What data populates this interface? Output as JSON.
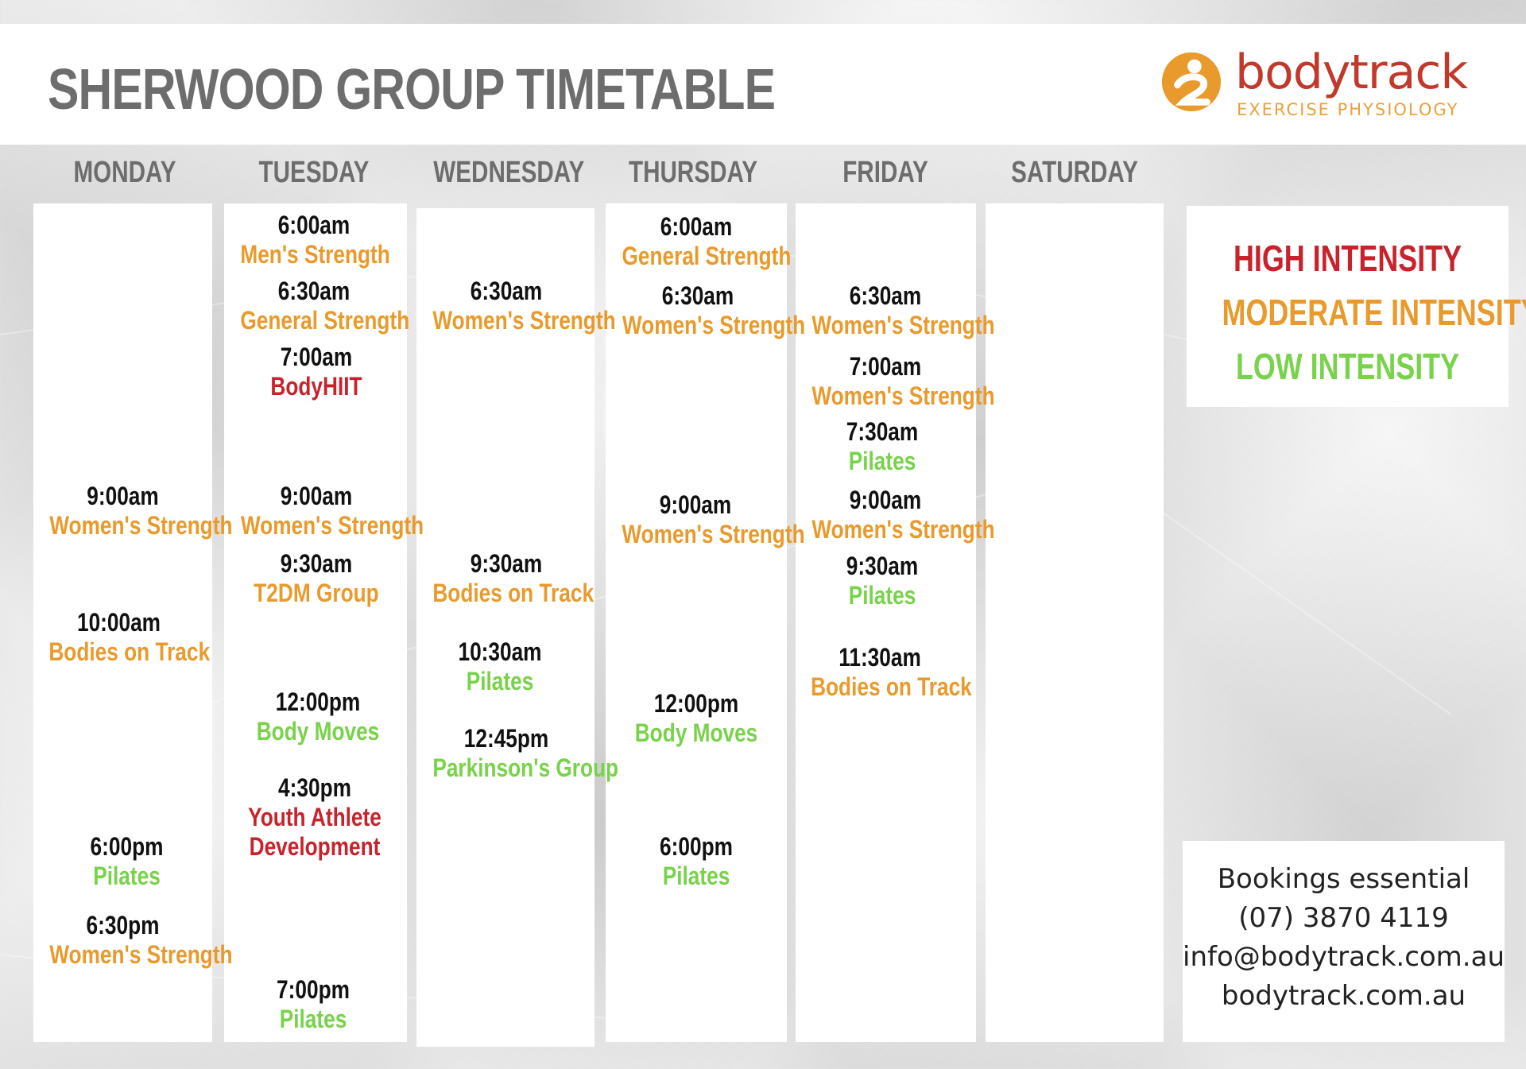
{
  "title": "SHERWOOD GROUP TIMETABLE",
  "brand": {
    "name": "bodytrack",
    "subtitle": "EXERCISE  PHYSIOLOGY",
    "logo_icon": "person-circle-icon",
    "name_color": "#c0392b",
    "accent_color": "#e8a23b"
  },
  "colors": {
    "high": "#c8232c",
    "moderate": "#e99a2c",
    "low": "#78d24a"
  },
  "days": [
    {
      "name": "MONDAY",
      "entries": [
        {
          "time": "9:00am",
          "class": "Women's Strength",
          "intensity": "moderate"
        },
        {
          "time": "10:00am",
          "class": "Bodies on Track",
          "intensity": "moderate"
        },
        {
          "time": "6:00pm",
          "class": "Pilates",
          "intensity": "low"
        },
        {
          "time": "6:30pm",
          "class": "Women's Strength",
          "intensity": "moderate"
        }
      ]
    },
    {
      "name": "TUESDAY",
      "entries": [
        {
          "time": "6:00am",
          "class": "Men's Strength",
          "intensity": "moderate"
        },
        {
          "time": "6:30am",
          "class": "General Strength",
          "intensity": "moderate"
        },
        {
          "time": "7:00am",
          "class": "BodyHIIT",
          "intensity": "high"
        },
        {
          "time": "9:00am",
          "class": "Women's Strength",
          "intensity": "moderate"
        },
        {
          "time": "9:30am",
          "class": "T2DM Group",
          "intensity": "moderate"
        },
        {
          "time": "12:00pm",
          "class": "Body Moves",
          "intensity": "low"
        },
        {
          "time": "4:30pm",
          "class": "Youth Athlete",
          "class2": "Development",
          "intensity": "high"
        },
        {
          "time": "7:00pm",
          "class": "Pilates",
          "intensity": "low"
        }
      ]
    },
    {
      "name": "WEDNESDAY",
      "entries": [
        {
          "time": "6:30am",
          "class": "Women's Strength",
          "intensity": "moderate"
        },
        {
          "time": "9:30am",
          "class": "Bodies on Track",
          "intensity": "moderate"
        },
        {
          "time": "10:30am",
          "class": "Pilates",
          "intensity": "low"
        },
        {
          "time": "12:45pm",
          "class": "Parkinson's Group",
          "intensity": "low"
        }
      ]
    },
    {
      "name": "THURSDAY",
      "entries": [
        {
          "time": "6:00am",
          "class": "General Strength",
          "intensity": "moderate"
        },
        {
          "time": "6:30am",
          "class": "Women's Strength",
          "intensity": "moderate"
        },
        {
          "time": "9:00am",
          "class": "Women's Strength",
          "intensity": "moderate"
        },
        {
          "time": "12:00pm",
          "class": "Body Moves",
          "intensity": "low"
        },
        {
          "time": "6:00pm",
          "class": "Pilates",
          "intensity": "low"
        }
      ]
    },
    {
      "name": "FRIDAY",
      "entries": [
        {
          "time": "6:30am",
          "class": "Women's Strength",
          "intensity": "moderate"
        },
        {
          "time": "7:00am",
          "class": "Women's Strength",
          "intensity": "moderate"
        },
        {
          "time": "7:30am",
          "class": "Pilates",
          "intensity": "low"
        },
        {
          "time": "9:00am",
          "class": "Women's Strength",
          "intensity": "moderate"
        },
        {
          "time": "9:30am",
          "class": "Pilates",
          "intensity": "low"
        },
        {
          "time": "11:30am",
          "class": "Bodies on Track",
          "intensity": "moderate"
        }
      ]
    },
    {
      "name": "SATURDAY",
      "entries": []
    }
  ],
  "legend": {
    "high": "HIGH INTENSITY",
    "moderate": "MODERATE INTENSITY",
    "low": "LOW INTENSITY"
  },
  "contact": {
    "line1": "Bookings essential",
    "phone": "(07) 3870 4119",
    "email": "info@bodytrack.com.au",
    "website": "bodytrack.com.au"
  }
}
